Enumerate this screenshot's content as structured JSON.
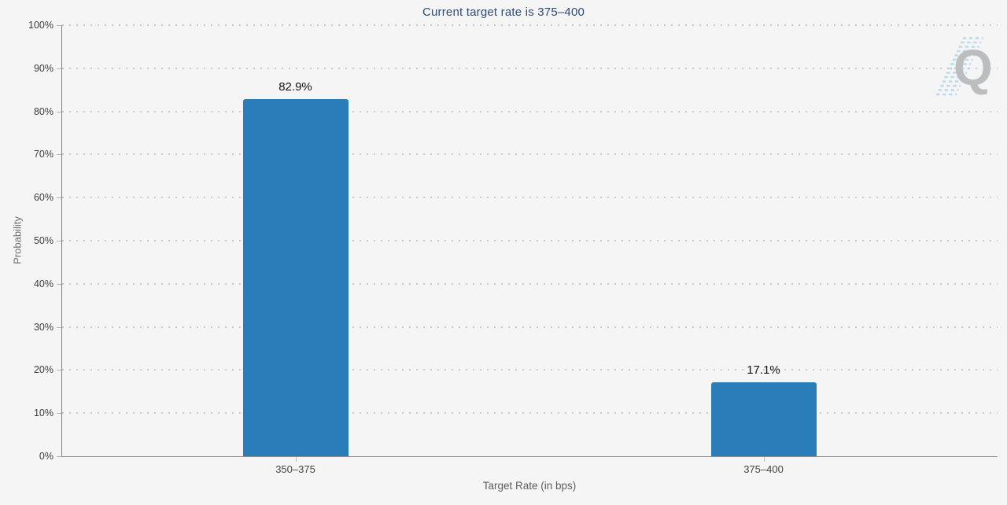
{
  "page": {
    "background": "#f5f5f6"
  },
  "chart_data": {
    "type": "bar",
    "title": "Current target rate is 375–400",
    "categories": [
      "350–375",
      "375–400"
    ],
    "values": [
      82.9,
      17.1
    ],
    "value_labels": [
      "82.9%",
      "17.1%"
    ],
    "xlabel": "Target Rate (in bps)",
    "ylabel": "Probability",
    "ylim": [
      0,
      100
    ],
    "y_tick_step": 10,
    "y_tick_suffix": "%",
    "grid": "horizontal dotted",
    "legend": "none",
    "bar_color": "#2a7db8",
    "title_color": "#2b4a7b",
    "axis_color": "#7e7e7e",
    "gridline_color": "#c9c9c9",
    "watermark_letter": "Q",
    "watermark_letter_color": "#b5b7b9",
    "watermark_stripe_color": "#b7d7ec"
  }
}
